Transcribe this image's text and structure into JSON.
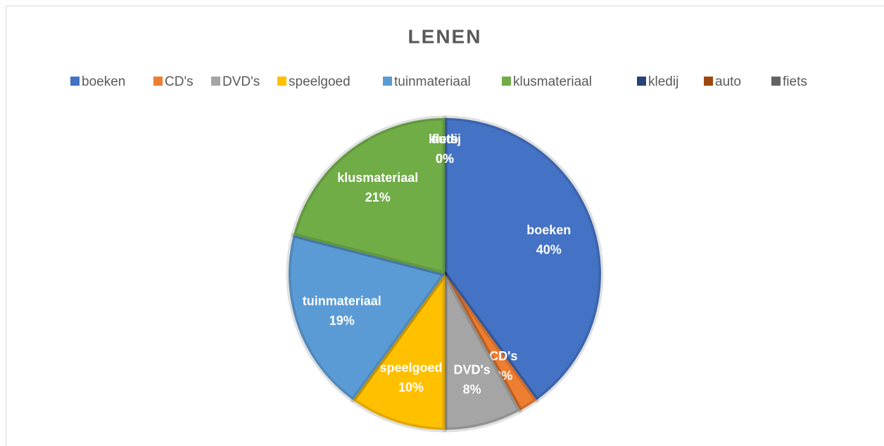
{
  "chart_data": {
    "type": "pie",
    "title": "LENEN",
    "categories": [
      "boeken",
      "CD's",
      "DVD's",
      "speelgoed",
      "tuinmateriaal",
      "klusmateriaal",
      "kledij",
      "auto",
      "fiets"
    ],
    "values": [
      40,
      2,
      8,
      10,
      19,
      21,
      0,
      0,
      0
    ],
    "value_labels": [
      "40%",
      "2%",
      "8%",
      "10%",
      "19%",
      "21%",
      "0%",
      "0%",
      "0%"
    ],
    "colors": [
      "#4472c4",
      "#ed7d31",
      "#a5a5a5",
      "#ffc000",
      "#5b9bd5",
      "#70ad47",
      "#264478",
      "#9e480e",
      "#636363"
    ],
    "legend": "top"
  }
}
